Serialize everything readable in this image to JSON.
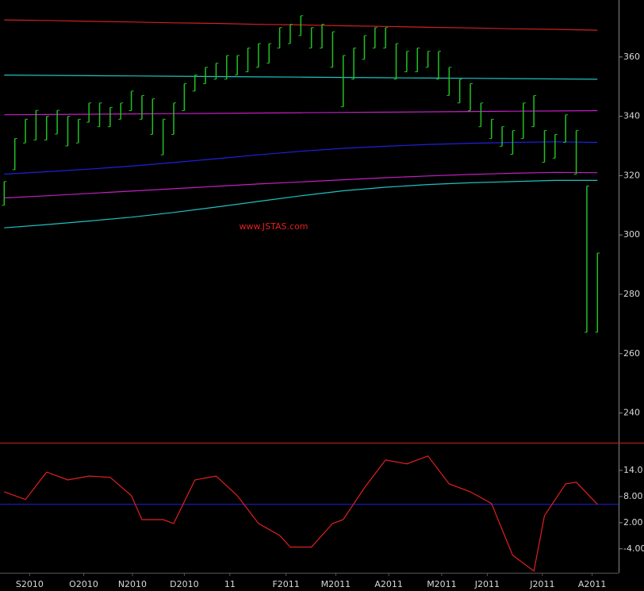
{
  "chart_data": [
    {
      "type": "hilo",
      "watermark": "www.JSTAS.com",
      "xlim": [
        -0.4,
        58
      ],
      "ylim": [
        230,
        379.2
      ],
      "yticks": [
        240,
        260,
        280,
        300,
        320,
        340,
        360
      ],
      "color": "#22c022",
      "high": [
        318,
        332.5,
        339,
        342,
        340,
        342,
        340,
        339,
        344.5,
        344.5,
        343,
        344.5,
        348.5,
        347,
        345.9,
        339,
        344.5,
        351,
        353.9,
        356.5,
        357.9,
        360.5,
        360.5,
        363,
        364.5,
        364.5,
        369.9,
        371,
        373.9,
        369.9,
        371,
        368.5,
        360.5,
        363,
        367.2,
        369.9,
        369.9,
        364.5,
        361.9,
        363,
        361.9,
        361.9,
        356.5,
        352.5,
        351,
        344.5,
        339,
        336.5,
        335.2,
        344.5,
        347,
        335.2,
        333.9,
        340.5,
        335.2,
        316.5,
        293.9
      ],
      "low": [
        310,
        322,
        331,
        332,
        332,
        334,
        330,
        331,
        338,
        336.5,
        336.5,
        339,
        341.9,
        339,
        333.9,
        327,
        333.9,
        341.9,
        348.5,
        351,
        352.5,
        352.5,
        353.9,
        355,
        356.5,
        357.9,
        363,
        364.5,
        367.2,
        363,
        363,
        356.5,
        343.2,
        352.5,
        359.2,
        363,
        363,
        352.5,
        355,
        355,
        356.5,
        352.5,
        347,
        344.5,
        341.9,
        336.5,
        332.5,
        329.9,
        327.2,
        332.5,
        336.5,
        324.5,
        325.9,
        331.2,
        320.5,
        267.2,
        267.2
      ],
      "lines": [
        {
          "color": "#d02020",
          "x": [
            0,
            4,
            8,
            12,
            16,
            20,
            24,
            28,
            32,
            36,
            40,
            44,
            48,
            52,
            56
          ],
          "values": [
            372.5,
            372.3,
            372,
            371.8,
            371.5,
            371.3,
            371,
            370.8,
            370.5,
            370.3,
            370,
            369.8,
            369.5,
            369.3,
            369
          ]
        },
        {
          "color": "#20c0c0",
          "x": [
            0,
            4,
            8,
            12,
            16,
            20,
            24,
            28,
            32,
            36,
            40,
            44,
            48,
            52,
            56
          ],
          "values": [
            353.9,
            353.8,
            353.7,
            353.6,
            353.5,
            353.4,
            353.3,
            353.2,
            353.1,
            353,
            352.9,
            352.8,
            352.7,
            352.6,
            352.5
          ]
        },
        {
          "color": "#c020c0",
          "x": [
            0,
            4,
            8,
            12,
            16,
            20,
            24,
            28,
            32,
            36,
            40,
            44,
            48,
            52,
            56
          ],
          "values": [
            340.5,
            340.6,
            340.7,
            340.8,
            340.9,
            341,
            341.1,
            341.2,
            341.3,
            341.4,
            341.5,
            341.6,
            341.7,
            341.8,
            341.9
          ]
        },
        {
          "color": "#2020e0",
          "x": [
            0,
            4,
            8,
            12,
            16,
            20,
            24,
            28,
            32,
            36,
            40,
            44,
            48,
            52,
            56
          ],
          "values": [
            320.5,
            321.3,
            322.2,
            323.2,
            324.4,
            325.7,
            327,
            328.2,
            329.2,
            329.9,
            330.5,
            330.9,
            331.2,
            331.4,
            331.2
          ]
        },
        {
          "color": "#c020c0",
          "x": [
            0,
            4,
            8,
            12,
            16,
            20,
            24,
            28,
            32,
            36,
            40,
            44,
            48,
            52,
            56
          ],
          "values": [
            312.5,
            313.2,
            314,
            314.8,
            315.6,
            316.4,
            317.2,
            317.9,
            318.6,
            319.3,
            319.9,
            320.4,
            320.8,
            321.1,
            321
          ]
        },
        {
          "color": "#20c0c0",
          "x": [
            0,
            4,
            8,
            12,
            16,
            20,
            24,
            28,
            32,
            36,
            40,
            44,
            48,
            52,
            56
          ],
          "values": [
            302.4,
            303.5,
            304.7,
            306,
            307.6,
            309.4,
            311.3,
            313.2,
            314.9,
            316.1,
            317,
            317.6,
            318,
            318.4,
            318.4
          ]
        }
      ]
    },
    {
      "type": "line",
      "xlim": [
        -0.4,
        58
      ],
      "ylim": [
        -9.5,
        20
      ],
      "yticks": [
        {
          "value": -4,
          "label": "-4.00"
        },
        {
          "value": 2,
          "label": "2.00"
        },
        {
          "value": 8,
          "label": "8.00"
        },
        {
          "value": 14,
          "label": "14.0"
        }
      ],
      "xticks": [
        {
          "value": 2.4,
          "label": "S2010"
        },
        {
          "value": 7.5,
          "label": "O2010"
        },
        {
          "value": 12.1,
          "label": "N2010"
        },
        {
          "value": 17,
          "label": "D2010"
        },
        {
          "value": 21.3,
          "label": "11"
        },
        {
          "value": 26.6,
          "label": "F2011"
        },
        {
          "value": 31.3,
          "label": "M2011"
        },
        {
          "value": 36.3,
          "label": "A2011"
        },
        {
          "value": 41.3,
          "label": "M2011"
        },
        {
          "value": 45.6,
          "label": "J2011"
        },
        {
          "value": 50.8,
          "label": "J2011"
        },
        {
          "value": 55.5,
          "label": "A2011"
        }
      ],
      "reference": 6.2,
      "reference_color": "#2020e0",
      "color": "#e02020",
      "x": [
        0,
        2,
        4,
        6,
        8,
        10,
        12,
        13,
        15,
        16,
        18,
        20,
        22,
        24,
        26,
        27,
        29,
        31,
        32,
        34,
        36,
        38,
        40,
        42,
        44,
        46,
        48,
        50,
        51,
        53,
        54,
        56
      ],
      "values": [
        9.1,
        7.3,
        13.6,
        11.8,
        12.7,
        12.4,
        8.2,
        2.7,
        2.7,
        1.8,
        11.8,
        12.7,
        8.2,
        1.8,
        -0.9,
        -3.6,
        -3.6,
        1.8,
        2.7,
        10,
        16.4,
        15.5,
        17.3,
        10.9,
        9.1,
        6.4,
        -5.5,
        -9.1,
        3.6,
        10.9,
        11.3,
        6.2
      ]
    }
  ]
}
